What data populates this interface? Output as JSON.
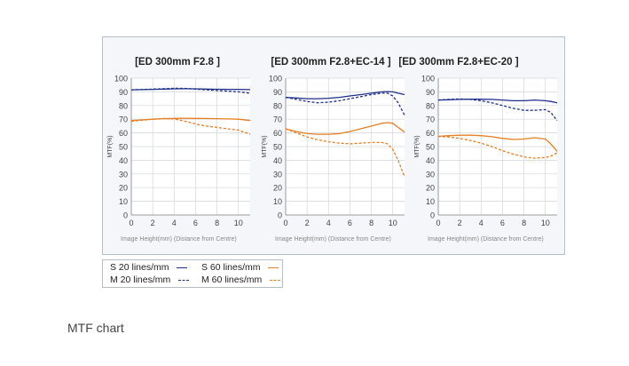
{
  "caption": "MTF chart",
  "legend": [
    {
      "label": "S 20 lines/mm",
      "color": "#1f2f8a",
      "dash": "solid"
    },
    {
      "label": "S 60 lines/mm",
      "color": "#e67e22",
      "dash": "solid"
    },
    {
      "label": "M 20 lines/mm",
      "color": "#1f2f8a",
      "dash": "dashed"
    },
    {
      "label": "M 60 lines/mm",
      "color": "#e67e22",
      "dash": "dashed"
    }
  ],
  "chart_data": [
    {
      "type": "line",
      "title": "[ED 300mm F2.8 ]",
      "xlabel": "Image Height(mm) (Distance from Centre)",
      "ylabel": "MTF(%)",
      "xlim": [
        0,
        11.1
      ],
      "ylim": [
        0,
        100
      ],
      "xticks": [
        0,
        2,
        4,
        6,
        8,
        10
      ],
      "yticks": [
        0,
        10,
        20,
        30,
        40,
        50,
        60,
        70,
        80,
        90,
        100
      ],
      "grid": true,
      "x": [
        0,
        1,
        2,
        3,
        4,
        5,
        6,
        7,
        8,
        9,
        10,
        11.1
      ],
      "series": [
        {
          "name": "S 20 lines/mm",
          "color": "#1f2f8a",
          "dash": "solid",
          "values": [
            91.5,
            91.6,
            91.8,
            92.0,
            92.2,
            92.3,
            92.2,
            92.0,
            91.9,
            91.8,
            91.8,
            91.6
          ]
        },
        {
          "name": "M 20 lines/mm",
          "color": "#1f2f8a",
          "dash": "dashed",
          "values": [
            91.5,
            91.7,
            92.0,
            92.3,
            92.6,
            92.5,
            92.0,
            91.5,
            91.0,
            90.5,
            90.0,
            89.0
          ]
        },
        {
          "name": "S 60 lines/mm",
          "color": "#e67e22",
          "dash": "solid",
          "values": [
            69.0,
            69.5,
            70.0,
            70.4,
            70.6,
            70.7,
            70.6,
            70.5,
            70.4,
            70.2,
            70.0,
            69.0
          ]
        },
        {
          "name": "M 60 lines/mm",
          "color": "#e67e22",
          "dash": "dashed",
          "values": [
            68.5,
            69.3,
            70.0,
            70.5,
            70.2,
            68.5,
            66.5,
            65.0,
            64.0,
            63.0,
            62.0,
            59.0
          ]
        }
      ]
    },
    {
      "type": "line",
      "title": "[ED 300mm F2.8+EC-14 ]",
      "xlabel": "Image Height(mm) (Distance from Centre)",
      "ylabel": "MTF(%)",
      "xlim": [
        0,
        11.1
      ],
      "ylim": [
        0,
        100
      ],
      "xticks": [
        0,
        2,
        4,
        6,
        8,
        10
      ],
      "yticks": [
        0,
        10,
        20,
        30,
        40,
        50,
        60,
        70,
        80,
        90,
        100
      ],
      "grid": true,
      "x": [
        0,
        1,
        2,
        3,
        4,
        5,
        6,
        7,
        8,
        9,
        9.5,
        10,
        10.5,
        11.1
      ],
      "series": [
        {
          "name": "S 20 lines/mm",
          "color": "#1f2f8a",
          "dash": "solid",
          "values": [
            86.0,
            85.5,
            85.0,
            85.0,
            85.3,
            86.0,
            87.0,
            88.0,
            89.0,
            90.0,
            90.2,
            90.0,
            89.0,
            88.0
          ]
        },
        {
          "name": "M 20 lines/mm",
          "color": "#1f2f8a",
          "dash": "dashed",
          "values": [
            86.0,
            84.5,
            83.0,
            82.0,
            82.5,
            83.5,
            85.0,
            86.5,
            88.0,
            89.0,
            89.0,
            87.0,
            82.0,
            73.0
          ]
        },
        {
          "name": "S 60 lines/mm",
          "color": "#e67e22",
          "dash": "solid",
          "values": [
            63.0,
            61.0,
            59.5,
            59.0,
            59.0,
            59.5,
            61.0,
            63.0,
            65.0,
            67.0,
            67.5,
            67.0,
            64.0,
            60.5
          ]
        },
        {
          "name": "M 60 lines/mm",
          "color": "#e67e22",
          "dash": "dashed",
          "values": [
            63.0,
            60.0,
            57.0,
            55.0,
            53.5,
            52.5,
            52.0,
            52.5,
            53.0,
            53.0,
            52.0,
            48.0,
            40.0,
            28.0
          ]
        }
      ]
    },
    {
      "type": "line",
      "title": "[ED 300mm F2.8+EC-20 ]",
      "xlabel": "Image Height(mm) (Distance from Centre)",
      "ylabel": "MTF(%)",
      "xlim": [
        0,
        11.1
      ],
      "ylim": [
        0,
        100
      ],
      "xticks": [
        0,
        2,
        4,
        6,
        8,
        10
      ],
      "yticks": [
        0,
        10,
        20,
        30,
        40,
        50,
        60,
        70,
        80,
        90,
        100
      ],
      "grid": true,
      "x": [
        0,
        1,
        2,
        3,
        4,
        5,
        6,
        7,
        8,
        9,
        10,
        10.5,
        11.1
      ],
      "series": [
        {
          "name": "S 20 lines/mm",
          "color": "#1f2f8a",
          "dash": "solid",
          "values": [
            84.0,
            84.2,
            84.5,
            84.6,
            84.6,
            84.5,
            84.0,
            83.5,
            83.5,
            84.0,
            83.5,
            83.0,
            82.0
          ]
        },
        {
          "name": "M 20 lines/mm",
          "color": "#1f2f8a",
          "dash": "dashed",
          "values": [
            84.0,
            84.5,
            84.8,
            84.5,
            83.5,
            82.0,
            80.0,
            78.0,
            76.5,
            76.5,
            77.0,
            75.0,
            69.0
          ]
        },
        {
          "name": "S 60 lines/mm",
          "color": "#e67e22",
          "dash": "solid",
          "values": [
            57.5,
            58.0,
            58.3,
            58.3,
            58.0,
            57.2,
            56.0,
            55.2,
            55.5,
            56.5,
            55.5,
            52.0,
            46.5
          ]
        },
        {
          "name": "M 60 lines/mm",
          "color": "#e67e22",
          "dash": "dashed",
          "values": [
            57.5,
            57.0,
            56.0,
            54.5,
            52.5,
            50.0,
            47.0,
            44.5,
            42.5,
            41.5,
            42.0,
            43.0,
            45.5
          ]
        }
      ]
    }
  ]
}
